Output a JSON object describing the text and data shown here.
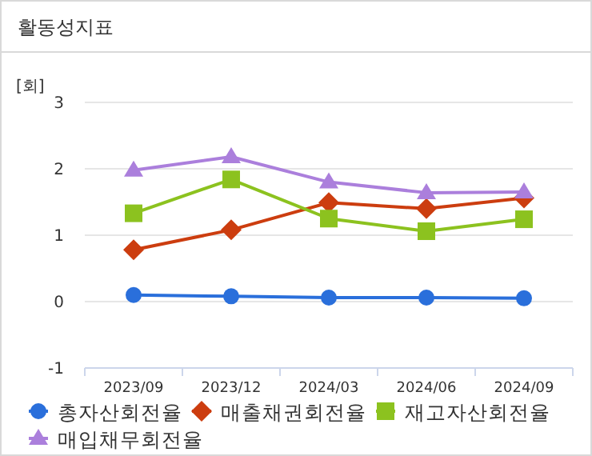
{
  "chart_data": {
    "type": "line",
    "title": "활동성지표",
    "ylabel": "[회]",
    "categories": [
      "2023/09",
      "2023/12",
      "2024/03",
      "2024/06",
      "2024/09"
    ],
    "ylim": [
      -1,
      3
    ],
    "yticks": [
      -1,
      0,
      1,
      2,
      3
    ],
    "grid": "y",
    "legend": "bottom",
    "series": [
      {
        "name": "총자산회전율",
        "color": "#2a6fdb",
        "marker": "circle",
        "values": [
          0.1,
          0.08,
          0.06,
          0.06,
          0.05
        ]
      },
      {
        "name": "매출채권회전율",
        "color": "#cc3d0f",
        "marker": "diamond",
        "values": [
          0.78,
          1.08,
          1.49,
          1.4,
          1.56
        ]
      },
      {
        "name": "재고자산회전율",
        "color": "#8cc21f",
        "marker": "square",
        "values": [
          1.33,
          1.84,
          1.25,
          1.06,
          1.24
        ]
      },
      {
        "name": "매입채무회전율",
        "color": "#ab7fdc",
        "marker": "triangle",
        "values": [
          1.98,
          2.18,
          1.8,
          1.64,
          1.65
        ]
      }
    ]
  }
}
